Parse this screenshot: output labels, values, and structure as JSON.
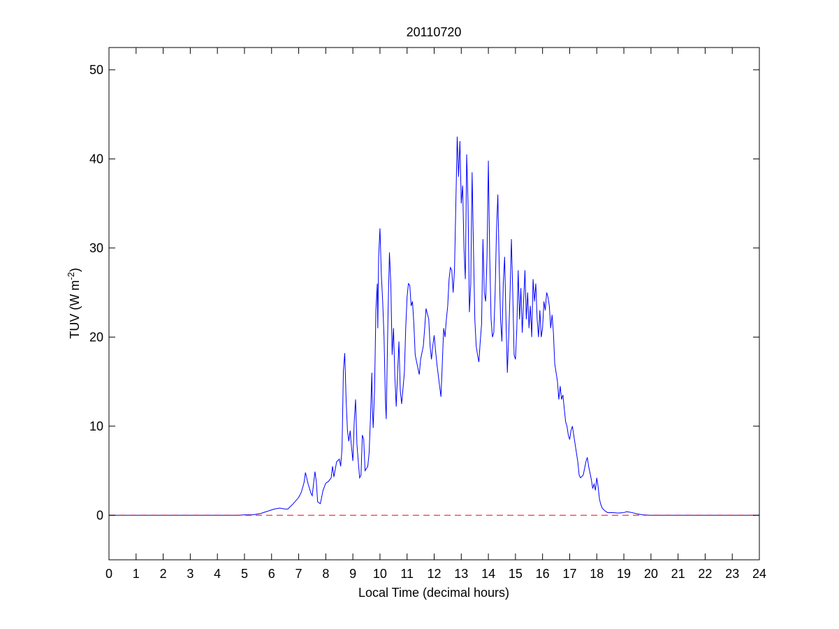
{
  "chart_data": {
    "type": "line",
    "title": "20110720",
    "xlabel": "Local Time (decimal hours)",
    "ylabel": {
      "base": "TUV (W m",
      "sup": "-2",
      "close": ")"
    },
    "xlim": [
      0,
      24
    ],
    "ylim": [
      -5,
      52.5
    ],
    "x_ticks": [
      0,
      1,
      2,
      3,
      4,
      5,
      6,
      7,
      8,
      9,
      10,
      11,
      12,
      13,
      14,
      15,
      16,
      17,
      18,
      19,
      20,
      21,
      22,
      23,
      24
    ],
    "y_ticks": [
      0,
      10,
      20,
      30,
      40,
      50
    ],
    "grid": false,
    "box": true,
    "series": [
      {
        "color": "#0000ff",
        "style": "solid",
        "points": [
          [
            0,
            0
          ],
          [
            4.8,
            0
          ],
          [
            5.0,
            0.05
          ],
          [
            5.3,
            0.05
          ],
          [
            5.6,
            0.2
          ],
          [
            5.8,
            0.4
          ],
          [
            6.0,
            0.6
          ],
          [
            6.1,
            0.7
          ],
          [
            6.3,
            0.8
          ],
          [
            6.5,
            0.7
          ],
          [
            6.6,
            0.7
          ],
          [
            6.8,
            1.3
          ],
          [
            7.0,
            2.0
          ],
          [
            7.1,
            2.6
          ],
          [
            7.2,
            3.7
          ],
          [
            7.25,
            4.8
          ],
          [
            7.35,
            3.5
          ],
          [
            7.45,
            2.5
          ],
          [
            7.5,
            2.2
          ],
          [
            7.6,
            4.9
          ],
          [
            7.65,
            3.8
          ],
          [
            7.7,
            1.5
          ],
          [
            7.8,
            1.3
          ],
          [
            7.9,
            2.8
          ],
          [
            8.0,
            3.6
          ],
          [
            8.1,
            3.8
          ],
          [
            8.2,
            4.2
          ],
          [
            8.25,
            5.5
          ],
          [
            8.3,
            4.3
          ],
          [
            8.4,
            6.0
          ],
          [
            8.5,
            6.3
          ],
          [
            8.55,
            5.5
          ],
          [
            8.6,
            7.5
          ],
          [
            8.65,
            16.2
          ],
          [
            8.7,
            18.2
          ],
          [
            8.75,
            13.0
          ],
          [
            8.8,
            9.5
          ],
          [
            8.85,
            8.3
          ],
          [
            8.9,
            9.5
          ],
          [
            8.95,
            7.6
          ],
          [
            9.0,
            6.1
          ],
          [
            9.05,
            10.5
          ],
          [
            9.1,
            13.0
          ],
          [
            9.15,
            8.0
          ],
          [
            9.2,
            6.0
          ],
          [
            9.25,
            4.2
          ],
          [
            9.3,
            4.5
          ],
          [
            9.35,
            9.0
          ],
          [
            9.4,
            8.5
          ],
          [
            9.45,
            5.0
          ],
          [
            9.55,
            5.5
          ],
          [
            9.6,
            7.0
          ],
          [
            9.65,
            11.0
          ],
          [
            9.7,
            16.0
          ],
          [
            9.72,
            12.0
          ],
          [
            9.75,
            9.8
          ],
          [
            9.8,
            14.0
          ],
          [
            9.85,
            23.0
          ],
          [
            9.9,
            26.0
          ],
          [
            9.92,
            21.0
          ],
          [
            9.95,
            29.0
          ],
          [
            10.0,
            32.2
          ],
          [
            10.05,
            27.0
          ],
          [
            10.1,
            24.0
          ],
          [
            10.15,
            20.0
          ],
          [
            10.2,
            13.0
          ],
          [
            10.23,
            10.8
          ],
          [
            10.3,
            23.0
          ],
          [
            10.35,
            29.5
          ],
          [
            10.4,
            26.0
          ],
          [
            10.45,
            18.0
          ],
          [
            10.5,
            21.0
          ],
          [
            10.55,
            15.5
          ],
          [
            10.6,
            12.2
          ],
          [
            10.65,
            16.0
          ],
          [
            10.7,
            19.5
          ],
          [
            10.75,
            14.0
          ],
          [
            10.8,
            12.5
          ],
          [
            10.9,
            16.0
          ],
          [
            10.95,
            21.0
          ],
          [
            11.0,
            24.5
          ],
          [
            11.05,
            26.0
          ],
          [
            11.1,
            25.8
          ],
          [
            11.15,
            23.5
          ],
          [
            11.2,
            24.0
          ],
          [
            11.25,
            21.5
          ],
          [
            11.3,
            18.0
          ],
          [
            11.4,
            16.5
          ],
          [
            11.45,
            15.8
          ],
          [
            11.5,
            17.5
          ],
          [
            11.6,
            19.0
          ],
          [
            11.65,
            21.0
          ],
          [
            11.7,
            23.2
          ],
          [
            11.8,
            22.0
          ],
          [
            11.85,
            19.0
          ],
          [
            11.9,
            17.5
          ],
          [
            11.95,
            19.0
          ],
          [
            12.0,
            20.2
          ],
          [
            12.05,
            18.5
          ],
          [
            12.1,
            17.0
          ],
          [
            12.2,
            14.5
          ],
          [
            12.25,
            13.3
          ],
          [
            12.3,
            17.0
          ],
          [
            12.35,
            21.0
          ],
          [
            12.4,
            20.0
          ],
          [
            12.45,
            22.0
          ],
          [
            12.5,
            23.5
          ],
          [
            12.55,
            26.5
          ],
          [
            12.6,
            27.8
          ],
          [
            12.65,
            27.5
          ],
          [
            12.7,
            25.0
          ],
          [
            12.75,
            27.5
          ],
          [
            12.8,
            35.0
          ],
          [
            12.85,
            42.5
          ],
          [
            12.9,
            38.0
          ],
          [
            12.95,
            42.0
          ],
          [
            13.0,
            35.0
          ],
          [
            13.05,
            37.0
          ],
          [
            13.1,
            30.0
          ],
          [
            13.15,
            26.5
          ],
          [
            13.2,
            40.5
          ],
          [
            13.25,
            35.0
          ],
          [
            13.3,
            22.8
          ],
          [
            13.35,
            26.0
          ],
          [
            13.4,
            38.5
          ],
          [
            13.45,
            30.0
          ],
          [
            13.5,
            22.0
          ],
          [
            13.55,
            19.0
          ],
          [
            13.6,
            18.0
          ],
          [
            13.65,
            17.2
          ],
          [
            13.7,
            19.5
          ],
          [
            13.75,
            21.5
          ],
          [
            13.8,
            31.0
          ],
          [
            13.85,
            25.0
          ],
          [
            13.9,
            24.0
          ],
          [
            13.95,
            29.0
          ],
          [
            14.0,
            39.8
          ],
          [
            14.05,
            29.0
          ],
          [
            14.1,
            22.0
          ],
          [
            14.15,
            20.0
          ],
          [
            14.2,
            20.5
          ],
          [
            14.25,
            25.0
          ],
          [
            14.3,
            32.0
          ],
          [
            14.35,
            36.0
          ],
          [
            14.4,
            28.0
          ],
          [
            14.45,
            22.0
          ],
          [
            14.5,
            19.5
          ],
          [
            14.55,
            26.0
          ],
          [
            14.6,
            29.0
          ],
          [
            14.65,
            22.0
          ],
          [
            14.7,
            16.0
          ],
          [
            14.75,
            20.0
          ],
          [
            14.8,
            25.0
          ],
          [
            14.85,
            31.0
          ],
          [
            14.9,
            25.0
          ],
          [
            14.95,
            18.0
          ],
          [
            15.0,
            17.5
          ],
          [
            15.05,
            21.0
          ],
          [
            15.1,
            27.5
          ],
          [
            15.15,
            22.0
          ],
          [
            15.2,
            25.5
          ],
          [
            15.25,
            20.5
          ],
          [
            15.3,
            24.0
          ],
          [
            15.35,
            27.5
          ],
          [
            15.4,
            22.0
          ],
          [
            15.45,
            25.0
          ],
          [
            15.5,
            21.0
          ],
          [
            15.55,
            23.5
          ],
          [
            15.6,
            20.0
          ],
          [
            15.65,
            26.5
          ],
          [
            15.7,
            24.0
          ],
          [
            15.75,
            26.0
          ],
          [
            15.8,
            22.0
          ],
          [
            15.85,
            20.0
          ],
          [
            15.9,
            23.0
          ],
          [
            15.95,
            20.0
          ],
          [
            16.0,
            21.0
          ],
          [
            16.05,
            24.0
          ],
          [
            16.1,
            23.0
          ],
          [
            16.15,
            25.0
          ],
          [
            16.2,
            24.5
          ],
          [
            16.25,
            23.5
          ],
          [
            16.3,
            21.0
          ],
          [
            16.35,
            22.5
          ],
          [
            16.4,
            20.5
          ],
          [
            16.45,
            17.0
          ],
          [
            16.5,
            16.0
          ],
          [
            16.55,
            15.0
          ],
          [
            16.6,
            13.0
          ],
          [
            16.65,
            14.5
          ],
          [
            16.7,
            13.0
          ],
          [
            16.75,
            13.5
          ],
          [
            16.8,
            12.0
          ],
          [
            16.85,
            10.5
          ],
          [
            16.9,
            10.0
          ],
          [
            16.95,
            9.0
          ],
          [
            17.0,
            8.5
          ],
          [
            17.05,
            9.5
          ],
          [
            17.1,
            10.0
          ],
          [
            17.15,
            9.0
          ],
          [
            17.2,
            8.0
          ],
          [
            17.3,
            6.0
          ],
          [
            17.35,
            4.5
          ],
          [
            17.4,
            4.2
          ],
          [
            17.5,
            4.5
          ],
          [
            17.6,
            6.0
          ],
          [
            17.65,
            6.5
          ],
          [
            17.7,
            5.5
          ],
          [
            17.8,
            4.0
          ],
          [
            17.85,
            3.0
          ],
          [
            17.9,
            3.5
          ],
          [
            17.95,
            2.8
          ],
          [
            18.0,
            4.2
          ],
          [
            18.05,
            3.2
          ],
          [
            18.1,
            1.8
          ],
          [
            18.15,
            1.2
          ],
          [
            18.2,
            0.8
          ],
          [
            18.3,
            0.5
          ],
          [
            18.4,
            0.3
          ],
          [
            18.6,
            0.3
          ],
          [
            18.8,
            0.25
          ],
          [
            19.0,
            0.3
          ],
          [
            19.1,
            0.4
          ],
          [
            19.2,
            0.35
          ],
          [
            19.3,
            0.3
          ],
          [
            19.5,
            0.15
          ],
          [
            19.7,
            0.05
          ],
          [
            20.0,
            0
          ],
          [
            24,
            0
          ]
        ]
      },
      {
        "color": "#ff0000",
        "style": "dashed",
        "points": [
          [
            0,
            0
          ],
          [
            24,
            0
          ]
        ]
      }
    ]
  }
}
